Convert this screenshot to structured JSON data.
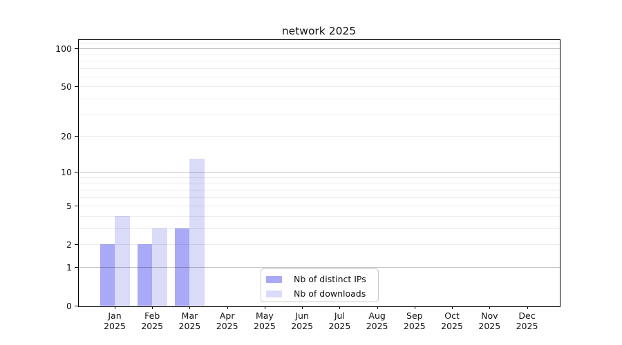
{
  "title": "network 2025",
  "legend": {
    "items": [
      {
        "label": "Nb of distinct IPs",
        "color": "#a9a9f8"
      },
      {
        "label": "Nb of downloads",
        "color": "#dadaf9"
      }
    ],
    "position": "lower center"
  },
  "chart_data": {
    "type": "bar",
    "title": "network 2025",
    "categories": [
      "Jan 2025",
      "Feb 2025",
      "Mar 2025",
      "Apr 2025",
      "May 2025",
      "Jun 2025",
      "Jul 2025",
      "Aug 2025",
      "Sep 2025",
      "Oct 2025",
      "Nov 2025",
      "Dec 2025"
    ],
    "series": [
      {
        "name": "Nb of distinct IPs",
        "color": "#a9a9f8",
        "values": [
          2,
          2,
          3,
          0,
          0,
          0,
          0,
          0,
          0,
          0,
          0,
          0
        ]
      },
      {
        "name": "Nb of downloads",
        "color": "#dadaf9",
        "values": [
          4,
          3,
          13,
          0,
          0,
          0,
          0,
          0,
          0,
          0,
          0,
          0
        ]
      }
    ],
    "xlabel": "",
    "ylabel": "",
    "y_scale": "log10(1+v)",
    "ylim": [
      0,
      116.5
    ],
    "y_major_ticks": [
      0,
      1,
      2,
      5,
      10,
      20,
      50,
      100
    ],
    "grid": true,
    "grid_major_values": [
      1,
      10,
      100
    ],
    "grid_minor_values": [
      2,
      3,
      4,
      5,
      6,
      7,
      8,
      9,
      20,
      30,
      40,
      50,
      60,
      70,
      80,
      90,
      110
    ],
    "legend_position": "lower center"
  }
}
